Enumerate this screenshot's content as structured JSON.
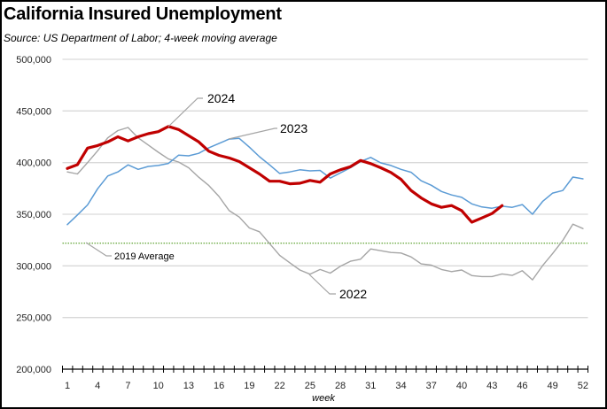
{
  "chart_data": {
    "type": "line",
    "title": "California Insured Unemployment",
    "subtitle": "Source:  US Department of Labor; 4-week moving average",
    "xlabel": "week",
    "ylabel": "",
    "xlim": [
      1,
      52
    ],
    "ylim": [
      200000,
      500000
    ],
    "y_ticks": [
      200000,
      250000,
      300000,
      350000,
      400000,
      450000,
      500000
    ],
    "y_tick_labels": [
      "200,000",
      "250,000",
      "300,000",
      "350,000",
      "400,000",
      "450,000",
      "500,000"
    ],
    "x_tick_labels": [
      "1",
      "4",
      "7",
      "10",
      "13",
      "16",
      "19",
      "22",
      "25",
      "28",
      "31",
      "34",
      "37",
      "40",
      "43",
      "46",
      "49",
      "52"
    ],
    "x_tick_values": [
      1,
      4,
      7,
      10,
      13,
      16,
      19,
      22,
      25,
      28,
      31,
      34,
      37,
      40,
      43,
      46,
      49,
      52
    ],
    "grid": "horizontal",
    "legend": "none (inline annotations)",
    "series": [
      {
        "name": "2022",
        "color": "#A5A5A5",
        "x": [
          1,
          2,
          3,
          4,
          5,
          6,
          7,
          8,
          9,
          10,
          11,
          12,
          13,
          14,
          15,
          16,
          17,
          18,
          19,
          20,
          21,
          22,
          23,
          24,
          25,
          26,
          27,
          28,
          29,
          30,
          31,
          32,
          33,
          34,
          35,
          36,
          37,
          38,
          39,
          40,
          41,
          42,
          43,
          44,
          45,
          46,
          47,
          48,
          49,
          50,
          51,
          52
        ],
        "values": [
          391000,
          389000,
          400000,
          411500,
          424000,
          431000,
          434000,
          424000,
          417000,
          410000,
          403500,
          400600,
          395000,
          385800,
          377800,
          367200,
          353500,
          347300,
          336700,
          333000,
          321600,
          310200,
          303000,
          296000,
          292000,
          296500,
          293000,
          299600,
          304500,
          306500,
          316400,
          314700,
          313000,
          312500,
          308700,
          301900,
          300700,
          296500,
          294500,
          296000,
          290600,
          289700,
          289700,
          292200,
          290800,
          295300,
          286500,
          300200,
          312000,
          324600,
          340400,
          336100
        ]
      },
      {
        "name": "2023",
        "color": "#5B9BD5",
        "x": [
          1,
          2,
          3,
          4,
          5,
          6,
          7,
          8,
          9,
          10,
          11,
          12,
          13,
          14,
          15,
          16,
          17,
          18,
          19,
          20,
          21,
          22,
          23,
          24,
          25,
          26,
          27,
          28,
          29,
          30,
          31,
          32,
          33,
          34,
          35,
          36,
          37,
          38,
          39,
          40,
          41,
          42,
          43,
          44,
          45,
          46,
          47,
          48,
          49,
          50,
          51,
          52
        ],
        "values": [
          340000,
          349300,
          359000,
          374700,
          387000,
          391000,
          397800,
          393500,
          396300,
          397200,
          399200,
          407200,
          406600,
          409000,
          414400,
          418500,
          422800,
          423500,
          415000,
          405700,
          397800,
          389500,
          391000,
          393000,
          392000,
          392400,
          385000,
          390000,
          395000,
          401000,
          405000,
          399700,
          397200,
          393500,
          390600,
          382400,
          378000,
          372000,
          368700,
          366400,
          360000,
          357000,
          355800,
          357800,
          356700,
          359300,
          350000,
          362300,
          370500,
          373000,
          386000,
          384300
        ]
      },
      {
        "name": "2024",
        "color": "#C00000",
        "x": [
          1,
          2,
          3,
          4,
          5,
          6,
          7,
          8,
          9,
          10,
          11,
          12,
          13,
          14,
          15,
          16,
          17,
          18,
          19,
          20,
          21,
          22,
          23,
          24,
          25,
          26,
          27,
          28,
          29,
          30,
          31,
          32,
          33,
          34,
          35,
          36,
          37,
          38,
          39,
          40,
          41,
          42,
          43,
          44
        ],
        "values": [
          394300,
          398000,
          414000,
          416500,
          420000,
          425000,
          421000,
          425000,
          428000,
          430000,
          435000,
          432000,
          426000,
          420000,
          411000,
          407000,
          404500,
          401000,
          395000,
          389000,
          382000,
          382000,
          379500,
          380000,
          382700,
          381000,
          389000,
          393000,
          396000,
          402000,
          399000,
          395000,
          390500,
          383800,
          373000,
          365800,
          360000,
          356700,
          358400,
          353500,
          342300,
          346400,
          350700,
          358400
        ]
      },
      {
        "name": "2019 Average",
        "color": "#70AD47",
        "style": "dotted",
        "value": 322000
      }
    ],
    "annotations": [
      {
        "text": "2024",
        "series": "2024",
        "anchor_week": 11
      },
      {
        "text": "2023",
        "series": "2023",
        "anchor_week": 17
      },
      {
        "text": "2022",
        "series": "2022",
        "anchor_week": 25
      },
      {
        "text": "2019 Average",
        "series": "2019 Average",
        "anchor_week": 3
      }
    ]
  }
}
